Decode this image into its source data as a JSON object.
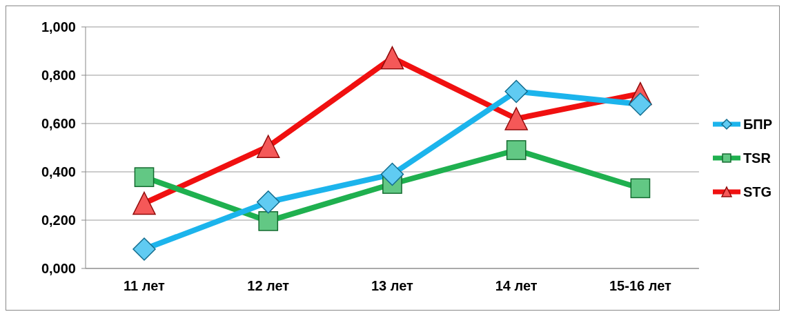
{
  "chart_data": {
    "type": "line",
    "categories": [
      "11 лет",
      "12 лет",
      "13 лет",
      "14 лет",
      "15-16 лет"
    ],
    "series": [
      {
        "name": "БПР",
        "color": "#1cb4ec",
        "marker": "diamond",
        "values": [
          0.08,
          0.275,
          0.39,
          0.733,
          0.68
        ]
      },
      {
        "name": "TSR",
        "color": "#1fb04f",
        "marker": "square",
        "values": [
          0.378,
          0.196,
          0.35,
          0.49,
          0.332
        ]
      },
      {
        "name": "STG",
        "color": "#f01010",
        "marker": "triangle",
        "values": [
          0.27,
          0.505,
          0.872,
          0.62,
          0.724
        ]
      }
    ],
    "ylim": [
      0,
      1
    ],
    "yticks": [
      {
        "value": 0,
        "label": "0,000"
      },
      {
        "value": 0.2,
        "label": "0,200"
      },
      {
        "value": 0.4,
        "label": "0,400"
      },
      {
        "value": 0.6,
        "label": "0,600"
      },
      {
        "value": 0.8,
        "label": "0,800"
      },
      {
        "value": 1,
        "label": "1,000"
      }
    ],
    "grid": "y",
    "legend": "right",
    "line_style": "solid"
  }
}
